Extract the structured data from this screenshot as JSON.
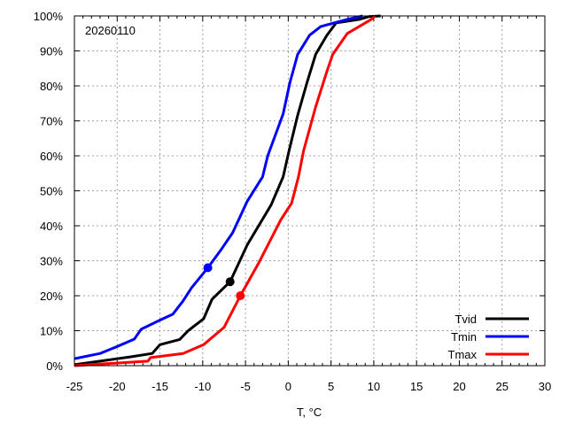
{
  "chart_data": {
    "type": "line",
    "title": "20260110",
    "xlabel": "T, °C",
    "ylabel": "",
    "xlim": [
      -25,
      30
    ],
    "ylim": [
      0,
      100
    ],
    "x_ticks": [
      -25,
      -20,
      -15,
      -10,
      -5,
      0,
      5,
      10,
      15,
      20,
      25,
      30
    ],
    "x_tick_labels": [
      "-25",
      "-20",
      "-15",
      "-10",
      "-5",
      "0",
      "5",
      "10",
      "15",
      "20",
      "25",
      "30"
    ],
    "y_ticks": [
      0,
      10,
      20,
      30,
      40,
      50,
      60,
      70,
      80,
      90,
      100
    ],
    "y_tick_labels": [
      "0%",
      "10%",
      "20%",
      "30%",
      "40%",
      "50%",
      "60%",
      "70%",
      "80%",
      "90%",
      "100%"
    ],
    "grid": true,
    "legend_position": "bottom-right",
    "series": [
      {
        "name": "Tvid",
        "color": "#000000",
        "marker": [
          -6.8,
          24
        ],
        "points": [
          [
            -25,
            0.3
          ],
          [
            -22,
            1.3
          ],
          [
            -18.5,
            2.5
          ],
          [
            -15.9,
            3.5
          ],
          [
            -15,
            6
          ],
          [
            -12.7,
            7.5
          ],
          [
            -11.7,
            10
          ],
          [
            -9.9,
            13.4
          ],
          [
            -8.9,
            19
          ],
          [
            -6.8,
            24
          ],
          [
            -4.8,
            34.5
          ],
          [
            -2,
            46
          ],
          [
            -0.6,
            54
          ],
          [
            0.1,
            61.5
          ],
          [
            1.1,
            71.6
          ],
          [
            2.2,
            81
          ],
          [
            3.2,
            89
          ],
          [
            4.5,
            94.4
          ],
          [
            5.6,
            98
          ],
          [
            8.3,
            99
          ],
          [
            9.4,
            99.8
          ],
          [
            10.8,
            100
          ]
        ]
      },
      {
        "name": "Tmin",
        "color": "#0000ff",
        "marker": [
          -9.4,
          28
        ],
        "points": [
          [
            -25,
            2
          ],
          [
            -22,
            3.5
          ],
          [
            -20,
            5.5
          ],
          [
            -18,
            7.6
          ],
          [
            -17.2,
            10.4
          ],
          [
            -15.1,
            12.9
          ],
          [
            -13.5,
            14.7
          ],
          [
            -12.3,
            18.5
          ],
          [
            -11.3,
            22.3
          ],
          [
            -9.4,
            28
          ],
          [
            -7.9,
            33
          ],
          [
            -6.5,
            38
          ],
          [
            -4.8,
            47
          ],
          [
            -3.0,
            54
          ],
          [
            -2.4,
            60
          ],
          [
            -0.6,
            72
          ],
          [
            0.2,
            81
          ],
          [
            1.1,
            89
          ],
          [
            2.5,
            94.5
          ],
          [
            3.8,
            97
          ],
          [
            6.9,
            99
          ],
          [
            8.7,
            100
          ]
        ]
      },
      {
        "name": "Tmax",
        "color": "#ff0000",
        "marker": [
          -5.6,
          20
        ],
        "points": [
          [
            -25,
            0
          ],
          [
            -16.4,
            1.3
          ],
          [
            -16.1,
            2.3
          ],
          [
            -12.3,
            3.5
          ],
          [
            -9.9,
            6
          ],
          [
            -7.5,
            11
          ],
          [
            -5.6,
            20
          ],
          [
            -3.4,
            29.6
          ],
          [
            -0.9,
            41.6
          ],
          [
            0.4,
            46.5
          ],
          [
            1.2,
            54
          ],
          [
            1.8,
            61.5
          ],
          [
            3.2,
            74
          ],
          [
            4.5,
            84
          ],
          [
            5.2,
            89
          ],
          [
            6.9,
            95
          ],
          [
            9.7,
            99
          ],
          [
            10.2,
            100
          ]
        ]
      }
    ]
  }
}
